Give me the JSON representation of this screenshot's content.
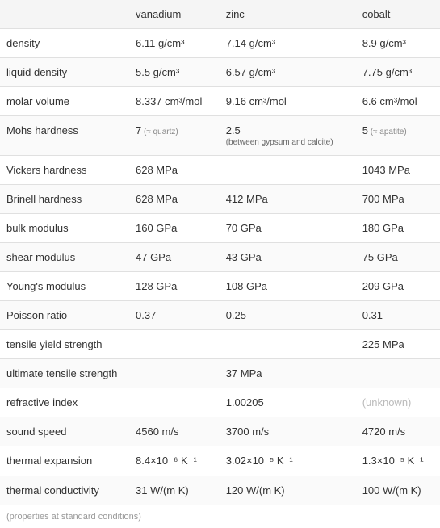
{
  "table": {
    "columns": [
      "",
      "vanadium",
      "zinc",
      "cobalt"
    ],
    "rows": [
      {
        "prop": "density",
        "v": "6.11 g/cm³",
        "z": "7.14 g/cm³",
        "c": "8.9 g/cm³"
      },
      {
        "prop": "liquid density",
        "v": "5.5 g/cm³",
        "z": "6.57 g/cm³",
        "c": "7.75 g/cm³"
      },
      {
        "prop": "molar volume",
        "v": "8.337 cm³/mol",
        "z": "9.16 cm³/mol",
        "c": "6.6 cm³/mol"
      },
      {
        "prop": "Mohs hardness",
        "v": "7",
        "v_note": "(≈ quartz)",
        "z": "2.5",
        "z_sub": "(between gypsum and calcite)",
        "c": "5",
        "c_note": "(≈ apatite)"
      },
      {
        "prop": "Vickers hardness",
        "v": "628 MPa",
        "z": "",
        "c": "1043 MPa"
      },
      {
        "prop": "Brinell hardness",
        "v": "628 MPa",
        "z": "412 MPa",
        "c": "700 MPa"
      },
      {
        "prop": "bulk modulus",
        "v": "160 GPa",
        "z": "70 GPa",
        "c": "180 GPa"
      },
      {
        "prop": "shear modulus",
        "v": "47 GPa",
        "z": "43 GPa",
        "c": "75 GPa"
      },
      {
        "prop": "Young's modulus",
        "v": "128 GPa",
        "z": "108 GPa",
        "c": "209 GPa"
      },
      {
        "prop": "Poisson ratio",
        "v": "0.37",
        "z": "0.25",
        "c": "0.31"
      },
      {
        "prop": "tensile yield strength",
        "v": "",
        "z": "",
        "c": "225 MPa"
      },
      {
        "prop": "ultimate tensile strength",
        "v": "",
        "z": "37 MPa",
        "c": ""
      },
      {
        "prop": "refractive index",
        "v": "",
        "z": "1.00205",
        "c": "(unknown)",
        "c_unknown": true
      },
      {
        "prop": "sound speed",
        "v": "4560 m/s",
        "z": "3700 m/s",
        "c": "4720 m/s"
      },
      {
        "prop": "thermal expansion",
        "v": "8.4×10⁻⁶ K⁻¹",
        "z": "3.02×10⁻⁵ K⁻¹",
        "c": "1.3×10⁻⁵ K⁻¹"
      },
      {
        "prop": "thermal conductivity",
        "v": "31 W/(m K)",
        "z": "120 W/(m K)",
        "c": "100 W/(m K)"
      }
    ],
    "footnote": "(properties at standard conditions)",
    "header_bg": "#f5f5f5",
    "border_color": "#e0e0e0",
    "text_color": "#333333",
    "note_color": "#888888",
    "unknown_color": "#bbbbbb"
  }
}
